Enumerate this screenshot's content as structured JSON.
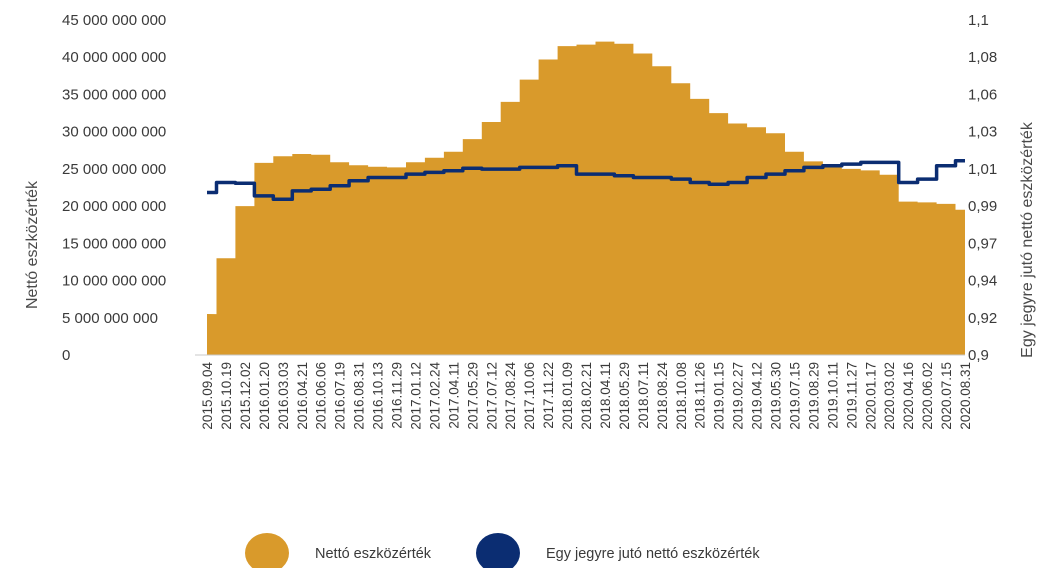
{
  "chart_data": {
    "type": "area",
    "xlabel": "",
    "ylabel": "Nettó eszközérték",
    "y2label": "Egy jegyre jutó nettó eszközérték",
    "ylim": [
      0,
      45000000000
    ],
    "y2lim": [
      0.9,
      1.1
    ],
    "y_ticks": [
      "0",
      "5 000 000 000",
      "10 000 000 000",
      "15 000 000 000",
      "20 000 000 000",
      "25 000 000 000",
      "30 000 000 000",
      "35 000 000 000",
      "40 000 000 000",
      "45 000 000 000"
    ],
    "y2_ticks": [
      "0,9",
      "0,92",
      "0,94",
      "0,97",
      "0,99",
      "1,01",
      "1,03",
      "1,06",
      "1,08",
      "1,1"
    ],
    "x_ticks": [
      "2015.09.04",
      "2015.10.19",
      "2015.12.02",
      "2016.01.20",
      "2016.03.03",
      "2016.04.21",
      "2016.06.06",
      "2016.07.19",
      "2016.08.31",
      "2016.10.13",
      "2016.11.29",
      "2017.01.12",
      "2017.02.24",
      "2017.04.11",
      "2017.05.29",
      "2017.07.12",
      "2017.08.24",
      "2017.10.06",
      "2017.11.22",
      "2018.01.09",
      "2018.02.21",
      "2018.04.11",
      "2018.05.29",
      "2018.07.11",
      "2018.08.24",
      "2018.10.08",
      "2018.11.26",
      "2019.01.15",
      "2019.02.27",
      "2019.04.12",
      "2019.05.30",
      "2019.07.15",
      "2019.08.29",
      "2019.10.11",
      "2019.11.27",
      "2020.01.17",
      "2020.03.02",
      "2020.04.16",
      "2020.06.02",
      "2020.07.15",
      "2020.08.31"
    ],
    "legend_position": "bottom",
    "grid": false,
    "series": [
      {
        "name": "Nettó eszközérték",
        "type": "area",
        "axis": "left",
        "color": "#D99A2B",
        "values": [
          5500000000,
          13000000000,
          20000000000,
          25800000000,
          26700000000,
          27000000000,
          26900000000,
          25900000000,
          25500000000,
          25300000000,
          25200000000,
          25900000000,
          26500000000,
          27300000000,
          29000000000,
          31300000000,
          34000000000,
          37000000000,
          39700000000,
          41500000000,
          41700000000,
          42100000000,
          41800000000,
          40500000000,
          38800000000,
          36500000000,
          34400000000,
          32500000000,
          31100000000,
          30600000000,
          29800000000,
          27300000000,
          26000000000,
          25500000000,
          25000000000,
          24800000000,
          24200000000,
          20600000000,
          20500000000,
          20300000000,
          19500000000
        ]
      },
      {
        "name": "Egy jegyre jutó nettó eszközérték",
        "type": "line",
        "axis": "right",
        "color": "#0B2D72",
        "values": [
          0.997,
          1.003,
          1.0025,
          0.995,
          0.993,
          0.998,
          0.999,
          1.001,
          1.004,
          1.006,
          1.006,
          1.008,
          1.009,
          1.01,
          1.0115,
          1.011,
          1.011,
          1.012,
          1.012,
          1.013,
          1.008,
          1.008,
          1.007,
          1.006,
          1.006,
          1.005,
          1.003,
          1.002,
          1.003,
          1.006,
          1.008,
          1.01,
          1.012,
          1.013,
          1.014,
          1.015,
          1.015,
          1.003,
          1.005,
          1.013,
          1.016
        ]
      }
    ]
  }
}
